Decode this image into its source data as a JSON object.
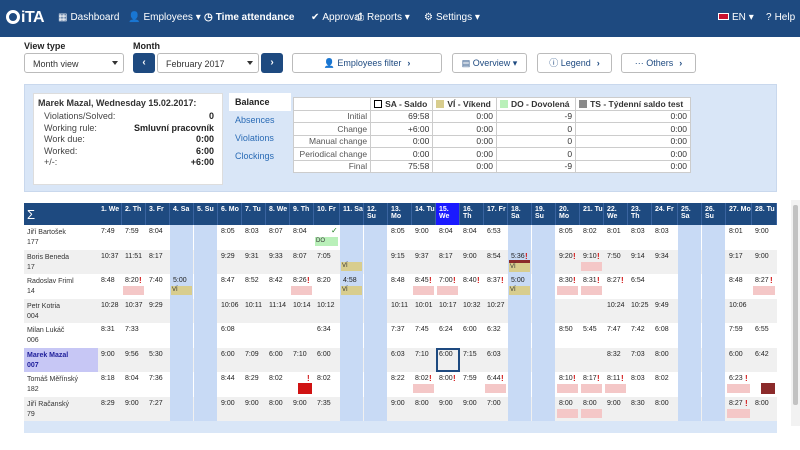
{
  "app": {
    "logo_text": "iTA"
  },
  "nav": {
    "items": [
      {
        "label": "Dashboard",
        "icon": "grid-icon"
      },
      {
        "label": "Employees",
        "icon": "user-icon",
        "dropdown": true
      },
      {
        "label": "Time attendance",
        "icon": "clock-icon",
        "active": true
      },
      {
        "label": "Approval",
        "icon": "check-icon"
      },
      {
        "label": "Reports",
        "icon": "print-icon",
        "dropdown": true
      },
      {
        "label": "Settings",
        "icon": "gear-icon",
        "dropdown": true
      }
    ],
    "language": "EN",
    "help": "Help"
  },
  "controls": {
    "view_type_label": "View type",
    "view_type_value": "Month view",
    "month_label": "Month",
    "month_value": "February 2017",
    "employees_filter": "Employees filter",
    "overview": "Overview",
    "legend": "Legend",
    "others": "Others"
  },
  "employee_card": {
    "title": "Marek Mazal, Wednesday 15.02.2017:",
    "rows": [
      {
        "k": "Violations/Solved:",
        "v": "0"
      },
      {
        "k": "Working rule:",
        "v": "Smluvní pracovník"
      },
      {
        "k": "Work due:",
        "v": "0:00"
      },
      {
        "k": "Worked:",
        "v": "6:00"
      },
      {
        "k": "+/-:",
        "v": "+6:00"
      }
    ]
  },
  "balance": {
    "tabs": [
      "Balance",
      "Absences",
      "Violations",
      "Clockings"
    ],
    "columns": [
      {
        "label": "SA - Saldo",
        "swatch": "#ffffff"
      },
      {
        "label": "VÍ - Víkend",
        "swatch": "#d8cd8e"
      },
      {
        "label": "DO - Dovolená",
        "swatch": "#b9f0b9"
      },
      {
        "label": "TS - Týdenní saldo test",
        "swatch": "#8a8a8a"
      }
    ],
    "rows": [
      {
        "label": "Initial",
        "values": [
          "69:58",
          "0:00",
          "-9",
          "0:00"
        ]
      },
      {
        "label": "Change",
        "values": [
          "+6:00",
          "0:00",
          "0",
          "0:00"
        ]
      },
      {
        "label": "Manual change",
        "values": [
          "0:00",
          "0:00",
          "0",
          "0:00"
        ]
      },
      {
        "label": "Periodical change",
        "values": [
          "0:00",
          "0:00",
          "0",
          "0:00"
        ]
      },
      {
        "label": "Final",
        "values": [
          "75:58",
          "0:00",
          "-9",
          "0:00"
        ]
      }
    ]
  },
  "grid": {
    "sigma": "Σ",
    "days": [
      "1. We",
      "2. Th",
      "3. Fr",
      "4. Sa",
      "5. Su",
      "6. Mo",
      "7. Tu",
      "8. We",
      "9. Th",
      "10. Fr",
      "11. Sa",
      "12. Su",
      "13. Mo",
      "14. Tu",
      "15. We",
      "16. Th",
      "17. Fr",
      "18. Sa",
      "19. Su",
      "20. Mo",
      "21. Tu",
      "22. We",
      "23. Th",
      "24. Fr",
      "25. Sa",
      "26. Su",
      "27. Mo",
      "28. Tu"
    ],
    "weekend_idx": [
      3,
      4,
      10,
      11,
      17,
      18,
      24,
      25
    ],
    "today_idx": 14,
    "employees": [
      {
        "name": "Jiří Bartošek",
        "id": "177",
        "times": [
          "7:49",
          "7:59",
          "8:04",
          "",
          "",
          "8:05",
          "8:03",
          "8:07",
          "8:04",
          "",
          "",
          "",
          "8:05",
          "9:00",
          "8:04",
          "8:04",
          "6:53",
          "",
          "",
          "8:05",
          "8:02",
          "8:01",
          "8:03",
          "8:03",
          "",
          "",
          "8:01",
          "9:00"
        ],
        "tags": [
          {
            "d": 9,
            "t": "do",
            "label": "DO"
          }
        ],
        "marks": [],
        "checks": [
          9
        ]
      },
      {
        "name": "Boris Beneda",
        "id": "17",
        "times": [
          "10:37",
          "11:51",
          "8:17",
          "",
          "",
          "9:29",
          "9:31",
          "9:33",
          "8:07",
          "7:05",
          "",
          "",
          "9:15",
          "9:37",
          "8:17",
          "9:00",
          "8:54",
          "5:36",
          "",
          "9:20",
          "9:10",
          "7:50",
          "9:14",
          "9:34",
          "",
          "",
          "9:17",
          "9:00"
        ],
        "tags": [
          {
            "d": 10,
            "t": "vi",
            "label": "VÍ"
          },
          {
            "d": 17,
            "t": "dark",
            "label": ""
          },
          {
            "d": 17,
            "t": "vi",
            "label": "VÍ",
            "row": 2
          },
          {
            "d": 20,
            "t": "red",
            "label": ""
          }
        ],
        "marks": [
          17,
          19,
          20
        ],
        "checks": []
      },
      {
        "name": "Radoslav Friml",
        "id": "14",
        "times": [
          "8:48",
          "8:20",
          "7:40",
          "5:00",
          "",
          "8:47",
          "8:52",
          "8:42",
          "8:26",
          "8:20",
          "4:58",
          "",
          "8:48",
          "8:45",
          "7:00",
          "8:40",
          "8:37",
          "5:00",
          "",
          "8:30",
          "8:31",
          "8:27",
          "6:54",
          "",
          "",
          "",
          "8:48",
          "8:27"
        ],
        "tags": [
          {
            "d": 1,
            "t": "red",
            "label": ""
          },
          {
            "d": 3,
            "t": "vi",
            "label": "VÍ"
          },
          {
            "d": 8,
            "t": "red",
            "label": ""
          },
          {
            "d": 10,
            "t": "vi",
            "label": "VÍ"
          },
          {
            "d": 13,
            "t": "red",
            "label": ""
          },
          {
            "d": 14,
            "t": "red",
            "label": ""
          },
          {
            "d": 17,
            "t": "vi",
            "label": "VÍ"
          },
          {
            "d": 19,
            "t": "red",
            "label": ""
          },
          {
            "d": 20,
            "t": "red",
            "label": ""
          },
          {
            "d": 27,
            "t": "red",
            "label": ""
          }
        ],
        "marks": [
          1,
          8,
          13,
          14,
          15,
          16,
          19,
          20,
          21,
          27
        ],
        "checks": []
      },
      {
        "name": "Petr Kotria",
        "id": "004",
        "times": [
          "10:28",
          "10:37",
          "9:29",
          "",
          "",
          "10:06",
          "10:11",
          "11:14",
          "10:14",
          "10:12",
          "",
          "",
          "10:11",
          "10:01",
          "10:17",
          "10:32",
          "10:27",
          "",
          "",
          "",
          "",
          "10:24",
          "10:25",
          "9:49",
          "",
          "",
          "10:06",
          ""
        ],
        "tags": [],
        "marks": [],
        "checks": []
      },
      {
        "name": "Milan Lukáč",
        "id": "006",
        "times": [
          "8:31",
          "7:33",
          "",
          "",
          "",
          "6:08",
          "",
          "",
          "",
          "6:34",
          "",
          "",
          "7:37",
          "7:45",
          "6:24",
          "6:00",
          "6:32",
          "",
          "",
          "8:50",
          "5:45",
          "7:47",
          "7:42",
          "6:08",
          "",
          "",
          "7:59",
          "6:55"
        ],
        "tags": [],
        "marks": [],
        "checks": []
      },
      {
        "name": "Marek Mazal",
        "id": "007",
        "sel": true,
        "times": [
          "9:00",
          "9:56",
          "5:30",
          "",
          "",
          "6:00",
          "7:09",
          "6:00",
          "7:10",
          "6:00",
          "",
          "",
          "6:03",
          "7:10",
          "6:00",
          "7:15",
          "6:03",
          "",
          "",
          "",
          "",
          "8:32",
          "7:03",
          "8:00",
          "",
          "",
          "6:00",
          "6:42"
        ],
        "tags": [],
        "marks": [],
        "checks": []
      },
      {
        "name": "Tomáš Měřínský",
        "id": "182",
        "times": [
          "8:18",
          "8:04",
          "7:36",
          "",
          "",
          "8:44",
          "8:29",
          "8:02",
          "",
          "8:02",
          "",
          "",
          "8:22",
          "8:02",
          "8:00",
          "7:59",
          "6:44",
          "",
          "",
          "8:10",
          "8:17",
          "8:11",
          "8:03",
          "8:02",
          "",
          "",
          "6:23",
          ""
        ],
        "tags": [
          {
            "d": 8,
            "t": "bright",
            "label": ""
          },
          {
            "d": 13,
            "t": "red",
            "label": ""
          },
          {
            "d": 16,
            "t": "red",
            "label": ""
          },
          {
            "d": 19,
            "t": "red",
            "label": ""
          },
          {
            "d": 20,
            "t": "red",
            "label": ""
          },
          {
            "d": 21,
            "t": "red",
            "label": ""
          },
          {
            "d": 26,
            "t": "red",
            "label": ""
          },
          {
            "d": 27,
            "t": "dark",
            "label": ""
          }
        ],
        "marks": [
          8,
          13,
          14,
          16,
          19,
          20,
          21,
          26
        ],
        "checks": []
      },
      {
        "name": "Jiří Račanský",
        "id": "79",
        "times": [
          "8:29",
          "9:00",
          "7:27",
          "",
          "",
          "9:00",
          "9:00",
          "8:00",
          "9:00",
          "7:35",
          "",
          "",
          "9:00",
          "8:00",
          "9:00",
          "9:00",
          "7:00",
          "",
          "",
          "8:00",
          "8:00",
          "9:00",
          "8:30",
          "8:00",
          "",
          "",
          "8:27",
          "8:00"
        ],
        "tags": [
          {
            "d": 19,
            "t": "red",
            "label": ""
          },
          {
            "d": 20,
            "t": "red",
            "label": ""
          },
          {
            "d": 26,
            "t": "red",
            "label": ""
          }
        ],
        "marks": [
          26
        ],
        "checks": []
      }
    ]
  }
}
